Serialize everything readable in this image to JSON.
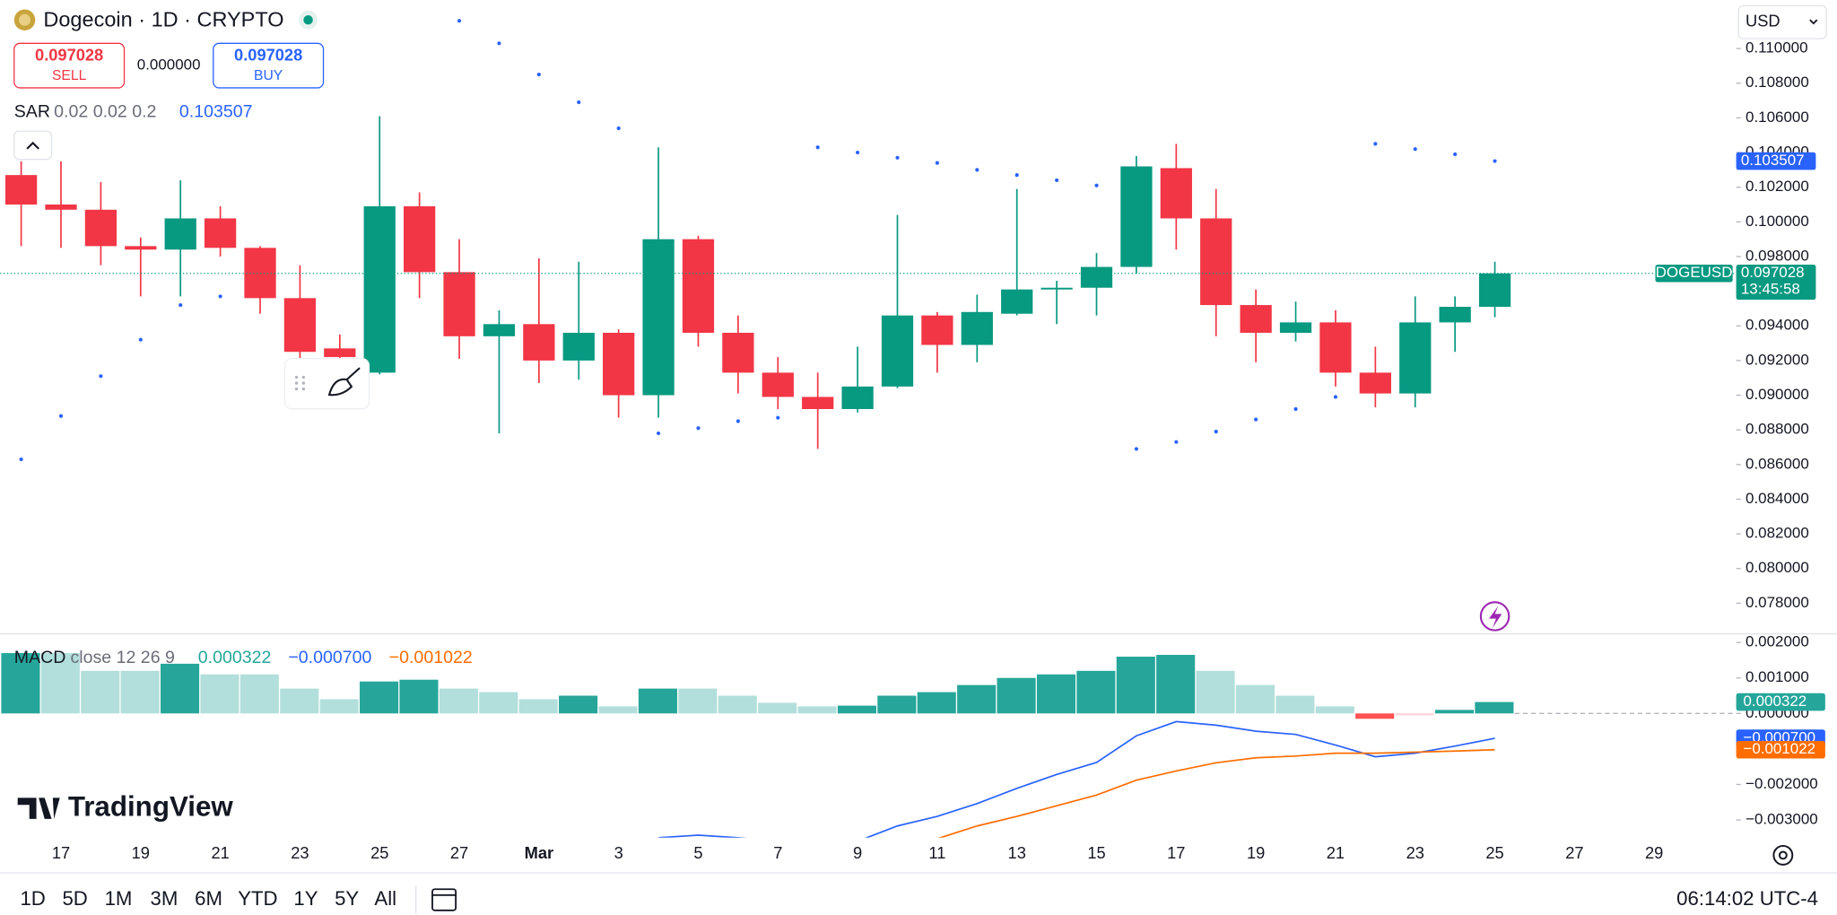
{
  "header": {
    "currency": "USD"
  },
  "trade": {
    "sell": {
      "price": 0.097028,
      "label": "SELL"
    },
    "spread": {
      "value": 0,
      "label": "0.000000"
    },
    "buy": {
      "price": 0.097028,
      "label": "BUY"
    }
  },
  "brand": "TradingView",
  "toolbar": {
    "ranges": [
      "1D",
      "5D",
      "1M",
      "3M",
      "6M",
      "YTD",
      "1Y",
      "5Y",
      "All"
    ],
    "clock": "06:14:02 UTC-4"
  },
  "chart_data": [
    {
      "type": "candlestick",
      "title": "Dogecoin · 1D · CRYPTO",
      "symbol": "DOGEUSD",
      "countdown": "13:45:58",
      "up_color": "#089981",
      "down_color": "#f23645",
      "open": [
        0.1027,
        0.101,
        0.1007,
        0.0986,
        0.0984,
        0.1002,
        0.0985,
        0.0956,
        0.0927,
        0.0913,
        0.1009,
        0.0971,
        0.0934,
        0.0941,
        0.092,
        0.0936,
        0.09,
        0.099,
        0.0936,
        0.0913,
        0.0899,
        0.0892,
        0.0905,
        0.0946,
        0.0929,
        0.0947,
        0.0961,
        0.0962,
        0.0974,
        0.1031,
        0.1002,
        0.0952,
        0.0936,
        0.0942,
        0.0913,
        0.0901,
        0.0942,
        0.0951
      ],
      "high": [
        0.1035,
        0.1035,
        0.1023,
        0.0991,
        0.1024,
        0.1009,
        0.0986,
        0.0975,
        0.0935,
        0.1061,
        0.1017,
        0.099,
        0.0949,
        0.0979,
        0.0977,
        0.0938,
        0.1043,
        0.0992,
        0.0946,
        0.0922,
        0.0913,
        0.0928,
        0.1004,
        0.0948,
        0.0958,
        0.1019,
        0.0966,
        0.0982,
        0.1038,
        0.1045,
        0.1019,
        0.0961,
        0.0954,
        0.0949,
        0.0928,
        0.0957,
        0.0957,
        0.0977
      ],
      "low": [
        0.0986,
        0.0985,
        0.0975,
        0.0957,
        0.0957,
        0.098,
        0.0947,
        0.0919,
        0.0913,
        0.0912,
        0.0956,
        0.0921,
        0.0878,
        0.0907,
        0.0909,
        0.0887,
        0.0887,
        0.0928,
        0.0901,
        0.0892,
        0.0869,
        0.089,
        0.0904,
        0.0913,
        0.0919,
        0.0946,
        0.0941,
        0.0946,
        0.097,
        0.0984,
        0.0934,
        0.0919,
        0.0931,
        0.0905,
        0.0893,
        0.0893,
        0.0925,
        0.0945
      ],
      "close": [
        0.101,
        0.1007,
        0.0986,
        0.0984,
        0.1002,
        0.0985,
        0.0956,
        0.0925,
        0.0922,
        0.1009,
        0.0971,
        0.0934,
        0.0941,
        0.092,
        0.0936,
        0.09,
        0.099,
        0.0936,
        0.0913,
        0.0899,
        0.0892,
        0.0905,
        0.0946,
        0.0929,
        0.0948,
        0.0961,
        0.0962,
        0.0974,
        0.1032,
        0.1002,
        0.0952,
        0.0936,
        0.0942,
        0.0913,
        0.0901,
        0.0942,
        0.0951,
        0.097028
      ],
      "ylim": [
        0.0763,
        0.1128
      ],
      "yticks": [
        {
          "value": 0.11,
          "label": "0.110000"
        },
        {
          "value": 0.108,
          "label": "0.108000"
        },
        {
          "value": 0.106,
          "label": "0.106000"
        },
        {
          "value": 0.104,
          "label": "0.104000"
        },
        {
          "value": 0.102,
          "label": "0.102000"
        },
        {
          "value": 0.1,
          "label": "0.100000"
        },
        {
          "value": 0.098,
          "label": "0.098000"
        },
        {
          "value": 0.096,
          "label": "0.096000"
        },
        {
          "value": 0.094,
          "label": "0.094000"
        },
        {
          "value": 0.092,
          "label": "0.092000"
        },
        {
          "value": 0.09,
          "label": "0.090000"
        },
        {
          "value": 0.088,
          "label": "0.088000"
        },
        {
          "value": 0.086,
          "label": "0.086000"
        },
        {
          "value": 0.084,
          "label": "0.084000"
        },
        {
          "value": 0.082,
          "label": "0.082000"
        },
        {
          "value": 0.08,
          "label": "0.080000"
        },
        {
          "value": 0.078,
          "label": "0.078000"
        }
      ],
      "xticks": [
        "17",
        "19",
        "21",
        "23",
        "25",
        "27",
        "Mar",
        "3",
        "5",
        "7",
        "9",
        "11",
        "13",
        "15",
        "17",
        "19",
        "21",
        "23",
        "25",
        "27",
        "29"
      ],
      "sar": {
        "name": "SAR",
        "params": "0.02 0.02 0.2",
        "color": "#2962ff",
        "values": [
          0.0863,
          0.0888,
          0.0911,
          0.0932,
          0.0952,
          0.0957,
          null,
          null,
          null,
          null,
          null,
          0.1116,
          0.1103,
          0.1085,
          0.1069,
          0.1054,
          0.0878,
          0.0881,
          0.0885,
          0.0887,
          0.1043,
          0.104,
          0.1037,
          0.1034,
          0.103,
          0.1027,
          0.1024,
          0.1021,
          0.0869,
          0.0873,
          0.0879,
          0.0886,
          0.0892,
          0.0899,
          0.1045,
          0.1042,
          0.1039,
          0.103507
        ]
      }
    },
    {
      "type": "macd",
      "title": "MACD",
      "params": "close 12 26 9",
      "histogram": [
        0.0017,
        0.0017,
        0.0012,
        0.0012,
        0.0014,
        0.0011,
        0.0011,
        0.0007,
        0.0004,
        0.0009,
        0.00095,
        0.0007,
        0.0006,
        0.0004,
        0.0005,
        0.0002,
        0.0007,
        0.0007,
        0.0005,
        0.0003,
        0.0002,
        0.00022,
        0.0005,
        0.0006,
        0.0008,
        0.001,
        0.0011,
        0.0012,
        0.0016,
        0.00165,
        0.0012,
        0.0008,
        0.0005,
        0.0002,
        -0.00015,
        -5e-05,
        0.0001,
        0.000322
      ],
      "histogram_colors": {
        "up": "#26a69a",
        "up_fading": "#b2dfdb",
        "down": "#ff5252",
        "down_fading": "#ffcdd2"
      },
      "series": [
        {
          "color": "#2962ff",
          "values": [
            null,
            null,
            null,
            null,
            null,
            null,
            null,
            null,
            null,
            null,
            null,
            null,
            null,
            null,
            null,
            null,
            -0.0035,
            -0.00343,
            -0.0035,
            -0.0036,
            -0.00366,
            -0.0036,
            -0.00317,
            -0.0029,
            -0.00254,
            -0.00211,
            -0.00172,
            -0.00138,
            -0.00063,
            -0.00023,
            -0.00033,
            -0.0005,
            -0.00059,
            -0.00089,
            -0.00122,
            -0.00112,
            -0.00092,
            -0.0007
          ],
          "value_labels": [
            null,
            null,
            null,
            null,
            null,
            null,
            null,
            null,
            null,
            null,
            null,
            null,
            null,
            null,
            null,
            null,
            null,
            null,
            null,
            null,
            null,
            null,
            null,
            null,
            null,
            null,
            null,
            null,
            null,
            null,
            null,
            null,
            null,
            null,
            null,
            null,
            null,
            "−0.000700"
          ]
        },
        {
          "color": "#ff6d00",
          "values": [
            null,
            null,
            null,
            null,
            null,
            null,
            null,
            null,
            null,
            null,
            null,
            null,
            null,
            null,
            null,
            null,
            null,
            null,
            null,
            null,
            null,
            null,
            null,
            -0.00353,
            -0.00317,
            -0.0029,
            -0.0026,
            -0.0023,
            -0.00188,
            -0.00162,
            -0.00139,
            -0.00125,
            -0.0012,
            -0.00112,
            -0.00112,
            -0.00109,
            -0.00106,
            -0.001022
          ],
          "value_labels": [
            null,
            null,
            null,
            null,
            null,
            null,
            null,
            null,
            null,
            null,
            null,
            null,
            null,
            null,
            null,
            null,
            null,
            null,
            null,
            null,
            null,
            null,
            null,
            null,
            null,
            null,
            null,
            null,
            null,
            null,
            null,
            null,
            null,
            null,
            null,
            null,
            null,
            "−0.001022"
          ]
        }
      ],
      "ylim": [
        -0.0035,
        0.00221
      ],
      "yticks": [
        {
          "value": 0.002,
          "label": "0.002000"
        },
        {
          "value": 0.001,
          "label": "0.001000"
        },
        {
          "value": 0,
          "label": "0.000000"
        },
        {
          "value": -0.002,
          "label": "−0.002000"
        },
        {
          "value": -0.003,
          "label": "−0.003000"
        }
      ]
    }
  ]
}
